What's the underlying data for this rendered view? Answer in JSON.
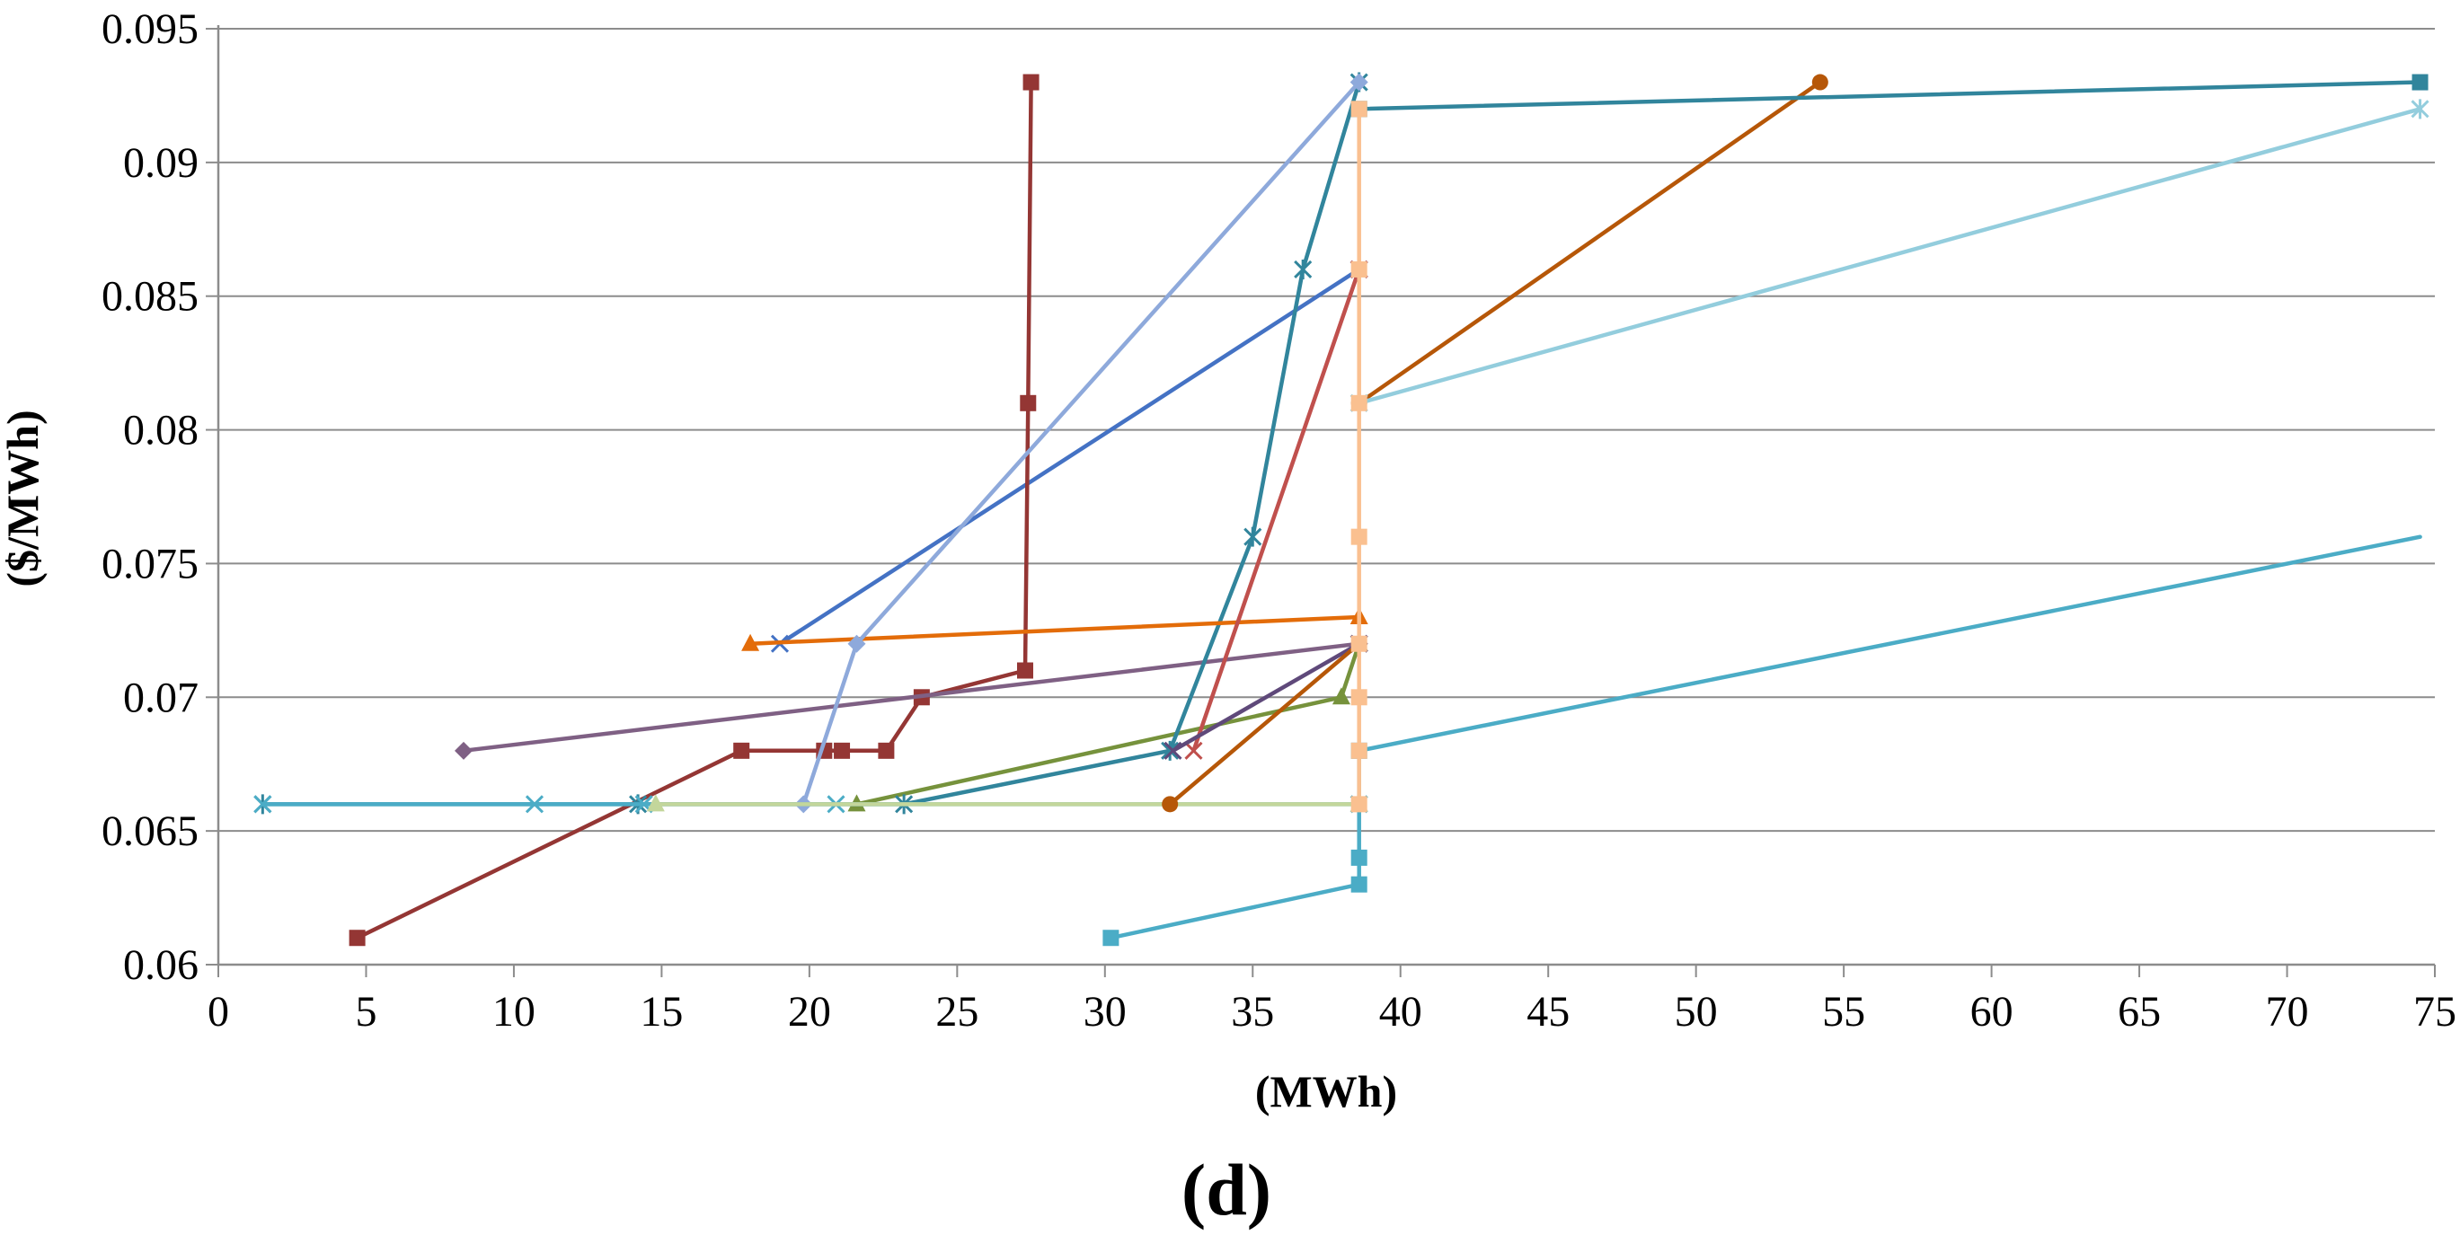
{
  "chart_data": {
    "type": "line",
    "title": "",
    "caption": "(d)",
    "xlabel": "(MWh)",
    "ylabel": "($/MWh)",
    "xlim": [
      0,
      75
    ],
    "ylim": [
      0.06,
      0.095
    ],
    "x_ticks": [
      "0",
      "5",
      "10",
      "15",
      "20",
      "25",
      "30",
      "35",
      "40",
      "45",
      "50",
      "55",
      "60",
      "65",
      "70",
      "75"
    ],
    "y_ticks": [
      "0.06",
      "0.065",
      "0.07",
      "0.075",
      "0.08",
      "0.085",
      "0.09",
      "0.095"
    ],
    "grid": "horizontal",
    "legend": "none",
    "series": [
      {
        "name": "series-1",
        "color": "#4472C4",
        "marker": "x",
        "points": [
          [
            19.0,
            0.072
          ],
          [
            38.6,
            0.086
          ]
        ]
      },
      {
        "name": "series-2",
        "color": "#943634",
        "marker": "square",
        "points": [
          [
            4.7,
            0.061
          ],
          [
            17.7,
            0.068
          ],
          [
            20.5,
            0.068
          ],
          [
            21.1,
            0.068
          ],
          [
            22.6,
            0.068
          ],
          [
            23.8,
            0.07
          ],
          [
            27.3,
            0.071
          ],
          [
            27.4,
            0.081
          ],
          [
            27.5,
            0.093
          ]
        ]
      },
      {
        "name": "series-3",
        "color": "#76923C",
        "marker": "triangle",
        "points": [
          [
            21.6,
            0.066
          ],
          [
            38.0,
            0.07
          ],
          [
            38.6,
            0.072
          ]
        ]
      },
      {
        "name": "series-4",
        "color": "#7F6084",
        "marker": "diamond",
        "points": [
          [
            8.3,
            0.068
          ],
          [
            38.6,
            0.072
          ]
        ]
      },
      {
        "name": "series-5",
        "color": "#31859C",
        "marker": "star",
        "points": [
          [
            1.5,
            0.066
          ],
          [
            14.2,
            0.066
          ],
          [
            23.2,
            0.066
          ],
          [
            32.2,
            0.068
          ],
          [
            35.0,
            0.076
          ],
          [
            36.7,
            0.086
          ],
          [
            38.6,
            0.093
          ]
        ]
      },
      {
        "name": "series-6",
        "color": "#E36C09",
        "marker": "triangle",
        "points": [
          [
            18.0,
            0.072
          ],
          [
            38.6,
            0.073
          ]
        ]
      },
      {
        "name": "series-7",
        "color": "#8EA9DB",
        "marker": "diamond",
        "points": [
          [
            19.8,
            0.066
          ],
          [
            21.6,
            0.072
          ],
          [
            38.6,
            0.093
          ]
        ]
      },
      {
        "name": "series-8",
        "color": "#C0504D",
        "marker": "x",
        "points": [
          [
            33.0,
            0.068
          ],
          [
            38.6,
            0.086
          ]
        ]
      },
      {
        "name": "series-9",
        "color": "#5F497A",
        "marker": "x",
        "points": [
          [
            32.3,
            0.068
          ],
          [
            38.6,
            0.072
          ]
        ]
      },
      {
        "name": "series-10",
        "color": "#4BACC6",
        "marker": "x",
        "points": [
          [
            1.5,
            0.066
          ],
          [
            10.7,
            0.066
          ],
          [
            14.4,
            0.066
          ],
          [
            20.9,
            0.066
          ],
          [
            38.6,
            0.066
          ]
        ]
      },
      {
        "name": "series-11",
        "color": "#C3D69B",
        "marker": "triangle",
        "points": [
          [
            14.8,
            0.066
          ],
          [
            38.6,
            0.066
          ]
        ]
      },
      {
        "name": "series-12",
        "color": "#B65708",
        "marker": "circle",
        "points": [
          [
            32.2,
            0.066
          ],
          [
            38.6,
            0.072
          ]
        ]
      },
      {
        "name": "series-13",
        "color": "#B65708",
        "marker": "circle",
        "points": [
          [
            38.6,
            0.081
          ],
          [
            54.2,
            0.093
          ]
        ]
      },
      {
        "name": "series-14",
        "color": "#31859C",
        "marker": "square",
        "points": [
          [
            38.6,
            0.092
          ],
          [
            74.5,
            0.093
          ]
        ]
      },
      {
        "name": "series-15",
        "color": "#93CDDD",
        "marker": "star",
        "points": [
          [
            38.6,
            0.081
          ],
          [
            74.5,
            0.092
          ]
        ]
      },
      {
        "name": "series-16",
        "color": "#4BACC6",
        "marker": "none",
        "points": [
          [
            38.6,
            0.068
          ],
          [
            74.5,
            0.076
          ]
        ]
      },
      {
        "name": "series-17",
        "color": "#4BACC6",
        "marker": "square",
        "points": [
          [
            30.2,
            0.061
          ],
          [
            38.6,
            0.063
          ],
          [
            38.6,
            0.064
          ],
          [
            38.6,
            0.068
          ]
        ]
      },
      {
        "name": "series-18",
        "color": "#FAC090",
        "marker": "square",
        "points": [
          [
            38.6,
            0.066
          ],
          [
            38.6,
            0.068
          ],
          [
            38.6,
            0.07
          ],
          [
            38.6,
            0.072
          ],
          [
            38.6,
            0.076
          ],
          [
            38.6,
            0.081
          ],
          [
            38.6,
            0.086
          ],
          [
            38.6,
            0.092
          ]
        ]
      }
    ]
  }
}
